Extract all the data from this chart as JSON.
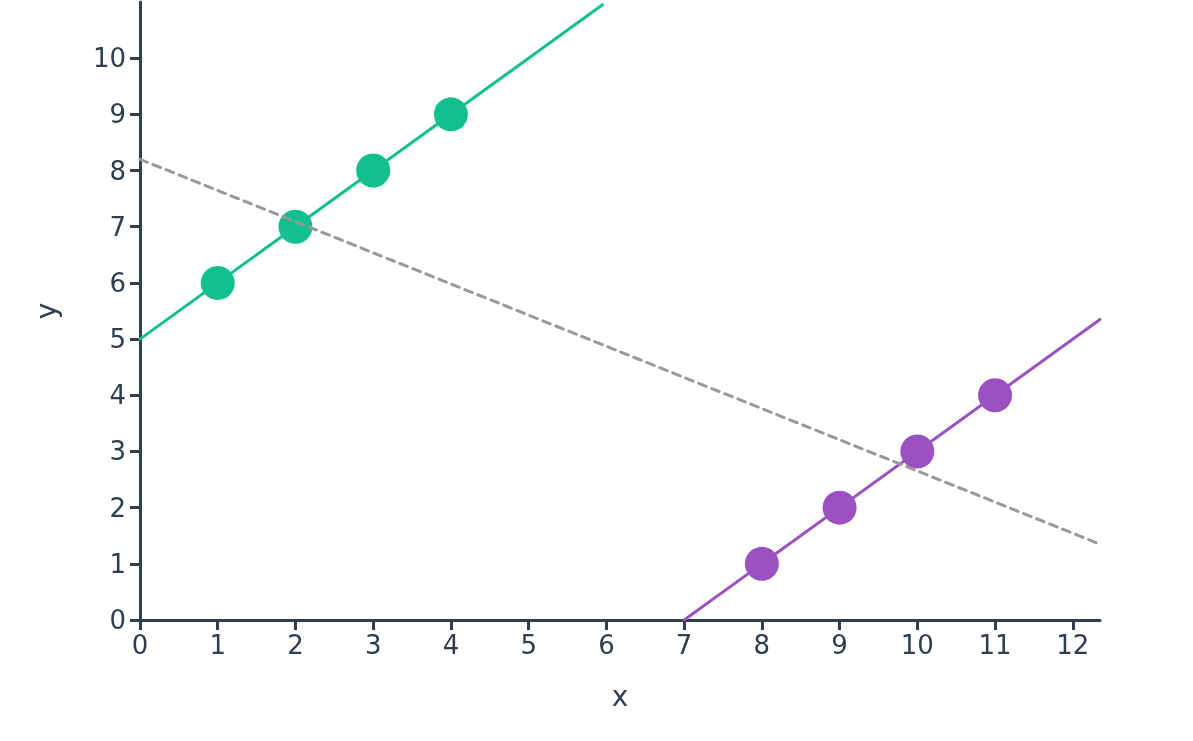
{
  "chart_data": {
    "type": "scatter",
    "xlabel": "x",
    "ylabel": "y",
    "xlim": [
      0,
      12.35
    ],
    "ylim": [
      0,
      11
    ],
    "xticks": [
      0,
      1,
      2,
      3,
      4,
      5,
      6,
      7,
      8,
      9,
      10,
      11,
      12
    ],
    "yticks": [
      0,
      1,
      2,
      3,
      4,
      5,
      6,
      7,
      8,
      9,
      10
    ],
    "grid": false,
    "marker": "circle",
    "series": [
      {
        "color": "#12c08f",
        "x": [
          1,
          2,
          3,
          4
        ],
        "values": [
          6,
          7,
          8,
          9
        ]
      },
      {
        "color": "#9b52c0",
        "x": [
          8,
          9,
          10,
          11
        ],
        "values": [
          1,
          2,
          3,
          4
        ]
      },
      {
        "type": "line",
        "color": "#12c08f",
        "marker": "none",
        "line_style": "solid",
        "x": [
          0,
          5.95
        ],
        "values": [
          5,
          10.95
        ]
      },
      {
        "type": "line",
        "color": "#9b52c0",
        "marker": "none",
        "line_style": "solid",
        "x": [
          7,
          12.35
        ],
        "values": [
          0,
          5.35
        ]
      },
      {
        "type": "line",
        "color": "#999999",
        "marker": "none",
        "line_style": "dashed",
        "x": [
          0,
          12.35
        ],
        "values": [
          8.2,
          1.35
        ]
      }
    ]
  }
}
